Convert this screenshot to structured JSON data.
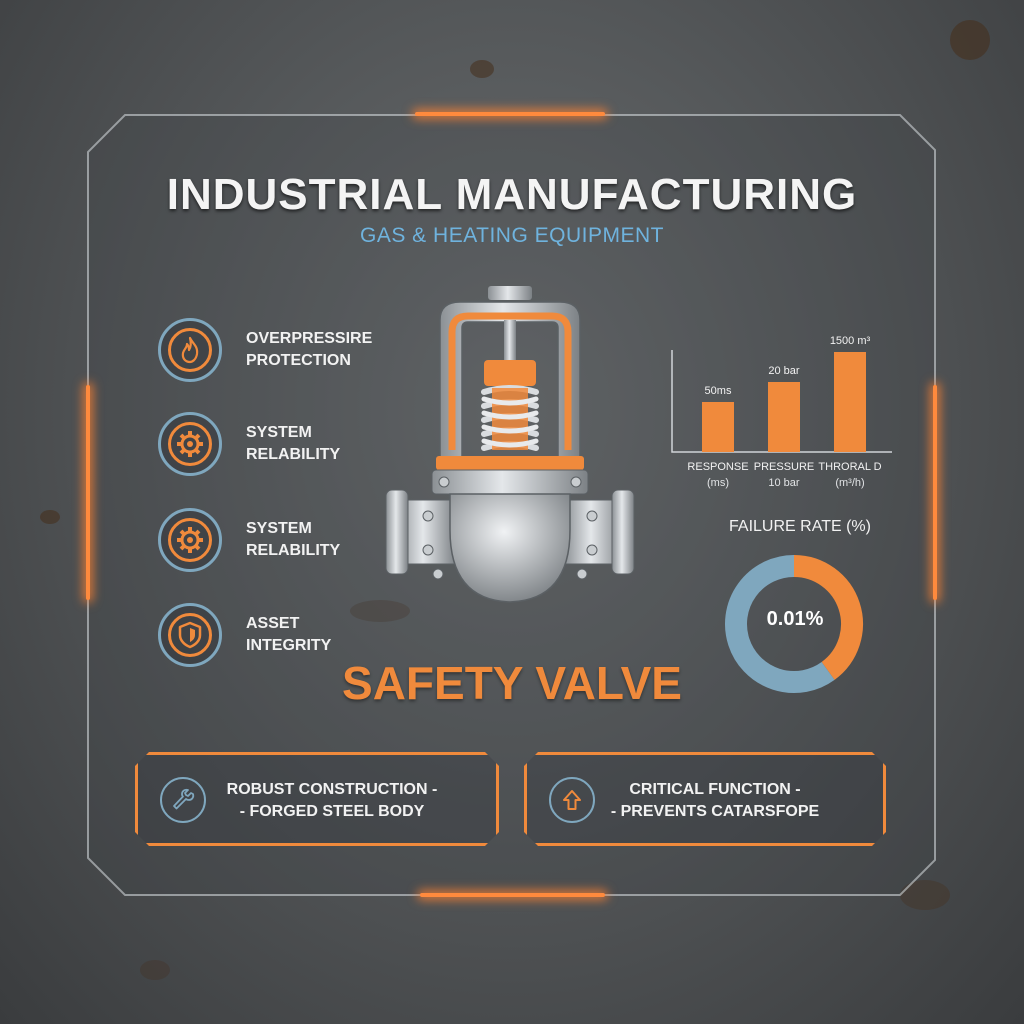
{
  "header": {
    "title": "INDUSTRIAL MANUFACTURING",
    "subtitle": "GAS & HEATING EQUIPMENT"
  },
  "features": [
    {
      "icon": "flame-icon",
      "line1": "OVERPRESSIRE",
      "line2": "PROTECTION"
    },
    {
      "icon": "gear-icon",
      "line1": "SYSTEM",
      "line2": "RELABILITY"
    },
    {
      "icon": "gear-icon",
      "line1": "SYSTEM",
      "line2": "RELABILITY"
    },
    {
      "icon": "shield-icon",
      "line1": "ASSET",
      "line2": "INTEGRITY"
    }
  ],
  "product": {
    "name": "SAFETY VALVE"
  },
  "chart_data": [
    {
      "type": "bar",
      "categories": [
        "RESPONSE",
        "PRESSURE",
        "THRORAL D"
      ],
      "category_sublabels": [
        "(ms)",
        "10 bar",
        "(m³/h)"
      ],
      "value_labels": [
        "50ms",
        "20 bar",
        "1500 m³"
      ],
      "values": [
        50,
        70,
        100
      ],
      "ylim": [
        0,
        100
      ],
      "color": "#f08a3c"
    },
    {
      "type": "pie",
      "title": "FAILURE RATE (%)",
      "center_label": "0.01%",
      "slices": [
        {
          "value": 40,
          "color": "#f08a3c"
        },
        {
          "value": 60,
          "color": "#7fa7be"
        }
      ]
    }
  ],
  "cards": [
    {
      "icon": "wrench-icon",
      "line1": "ROBUST CONSTRUCTION -",
      "line2": "- FORGED STEEL BODY"
    },
    {
      "icon": "arrow-up-icon",
      "line1": "CRITICAL FUNCTION -",
      "line2": "- PREVENTS CATARSFOPE"
    }
  ],
  "colors": {
    "accent": "#f08a3c",
    "blue": "#7fa7be",
    "subtitle": "#6fb3de"
  }
}
